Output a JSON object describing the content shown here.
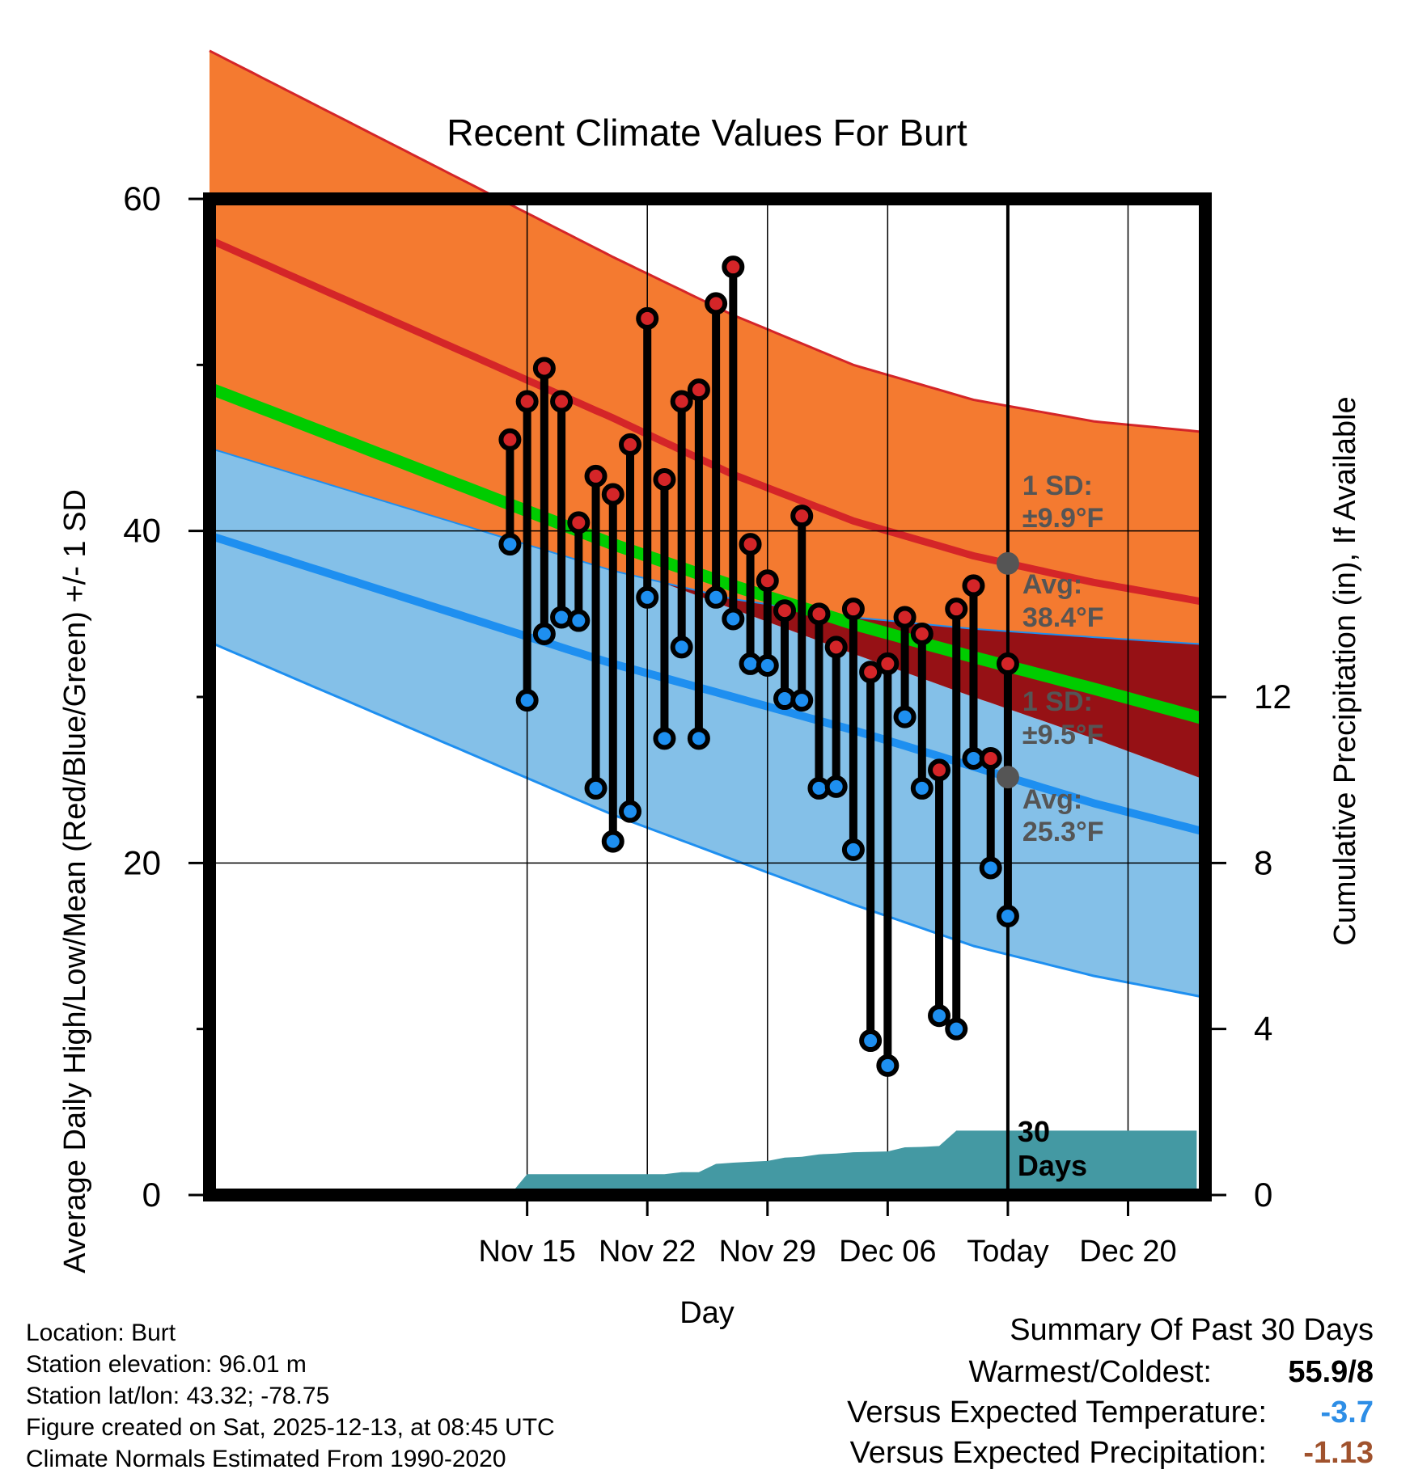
{
  "chart_data": {
    "type": "line",
    "title": "Recent Climate Values For Burt",
    "xlabel": "Day",
    "ylabel": "Average Daily High/Low/Mean (Red/Blue/Green) +/- 1 SD",
    "y2label": "Cumulative Precipitation (in), If Available",
    "ylim": [
      0,
      60
    ],
    "y2lim": [
      0,
      24
    ],
    "xlim": [
      -3.5,
      54.5
    ],
    "yticks": [
      0,
      20,
      40,
      60
    ],
    "y2ticks": [
      0,
      4,
      8,
      12
    ],
    "xticks": [
      {
        "day": 15,
        "label": "Nov 15"
      },
      {
        "day": 22,
        "label": "Nov 22"
      },
      {
        "day": 29,
        "label": "Nov 29"
      },
      {
        "day": 36,
        "label": "Dec 06"
      },
      {
        "day": 43,
        "label": "Today"
      },
      {
        "day": 50,
        "label": "Dec 20"
      }
    ],
    "today_day": 43,
    "normals": {
      "x": [
        13,
        20,
        27,
        34,
        41,
        48,
        54
      ],
      "high_mean": [
        50.0,
        46.8,
        43.4,
        40.6,
        38.5,
        36.9,
        35.8
      ],
      "high_upper": [
        60.2,
        56.5,
        53.0,
        50.0,
        47.9,
        46.6,
        46.0
      ],
      "high_lower": [
        39.8,
        37.6,
        35.9,
        34.8,
        34.1,
        33.6,
        33.2
      ],
      "low_mean": [
        34.3,
        32.0,
        30.0,
        28.0,
        25.8,
        23.6,
        22.0
      ],
      "low_upper": [
        41.3,
        38.0,
        35.3,
        32.6,
        30.0,
        27.5,
        25.2
      ],
      "low_lower": [
        26.0,
        22.9,
        20.2,
        17.5,
        15.0,
        13.2,
        12.0
      ],
      "mean": [
        42.0,
        39.2,
        36.7,
        34.4,
        32.4,
        30.5,
        28.8
      ]
    },
    "series": [
      {
        "name": "Daily High",
        "color": "#d42528",
        "x": [
          14,
          15,
          16,
          17,
          18,
          19,
          20,
          21,
          22,
          23,
          24,
          25,
          26,
          27,
          28,
          29,
          30,
          31,
          32,
          33,
          34,
          35,
          36,
          37,
          38,
          39,
          40,
          41,
          42,
          43
        ],
        "values": [
          45.5,
          47.8,
          49.8,
          47.8,
          40.5,
          43.3,
          42.2,
          45.2,
          52.8,
          43.1,
          47.8,
          48.5,
          53.7,
          55.9,
          39.2,
          37.0,
          35.2,
          40.9,
          35.0,
          33.0,
          35.3,
          31.5,
          32.0,
          34.8,
          33.8,
          25.6,
          35.3,
          36.7,
          26.3,
          32.0
        ]
      },
      {
        "name": "Daily Low",
        "color": "#1e8ff0",
        "x": [
          14,
          15,
          16,
          17,
          18,
          19,
          20,
          21,
          22,
          23,
          24,
          25,
          26,
          27,
          28,
          29,
          30,
          31,
          32,
          33,
          34,
          35,
          36,
          37,
          38,
          39,
          40,
          41,
          42,
          43
        ],
        "values": [
          39.2,
          29.8,
          33.8,
          34.8,
          34.6,
          24.5,
          21.3,
          23.1,
          36.0,
          27.5,
          33.0,
          27.5,
          36.0,
          34.7,
          32.0,
          31.9,
          29.9,
          29.8,
          24.5,
          24.6,
          20.8,
          9.3,
          7.8,
          28.8,
          24.5,
          10.8,
          10.0,
          26.3,
          19.7,
          16.8
        ]
      },
      {
        "name": "Cumulative Precipitation (in)",
        "color": "#4499a3",
        "x": [
          14,
          15,
          16,
          17,
          18,
          19,
          20,
          21,
          22,
          23,
          24,
          25,
          26,
          27,
          28,
          29,
          30,
          31,
          32,
          33,
          34,
          35,
          36,
          37,
          38,
          39,
          40,
          41,
          42,
          43,
          54
        ],
        "values": [
          0.0,
          0.5,
          0.5,
          0.5,
          0.5,
          0.5,
          0.5,
          0.5,
          0.5,
          0.5,
          0.55,
          0.55,
          0.75,
          0.78,
          0.8,
          0.82,
          0.9,
          0.92,
          0.98,
          1.0,
          1.03,
          1.04,
          1.05,
          1.15,
          1.16,
          1.18,
          1.55,
          1.55,
          1.55,
          1.55,
          1.55
        ]
      }
    ],
    "annotations": {
      "high_sd": "1 SD:",
      "high_sd_value": "±9.9°F",
      "high_avg": "Avg:",
      "high_avg_value": "38.4°F",
      "low_sd": "1 SD:",
      "low_sd_value": "±9.5°F",
      "low_avg": "Avg:",
      "low_avg_value": "25.3°F",
      "days_number": "30",
      "days_label": "Days"
    },
    "colors": {
      "high_band": "#f47a30",
      "high_line": "#d42528",
      "mid_band": "#961115",
      "mean_line": "#00cc00",
      "low_band": "#84c0e8",
      "low_line": "#1e8ff0",
      "precip": "#4499a3",
      "annotation": "#555555"
    }
  },
  "info": {
    "location": "Location: Burt",
    "elevation": "Station elevation: 96.01 m",
    "latlon": "Station lat/lon: 43.32; -78.75",
    "created": "Figure created on Sat, 2025-12-13, at 08:45 UTC",
    "normals": "Climate Normals Estimated From 1990-2020"
  },
  "summary": {
    "title": "Summary Of Past 30 Days",
    "warm_label": "Warmest/Coldest:",
    "warm_value": "55.9/8",
    "temp_label": "Versus Expected Temperature:",
    "temp_value": "-3.7",
    "temp_color": "#2e8ee6",
    "precip_label": "Versus Expected Precipitation:",
    "precip_value": "-1.13",
    "precip_color": "#a0522d"
  }
}
